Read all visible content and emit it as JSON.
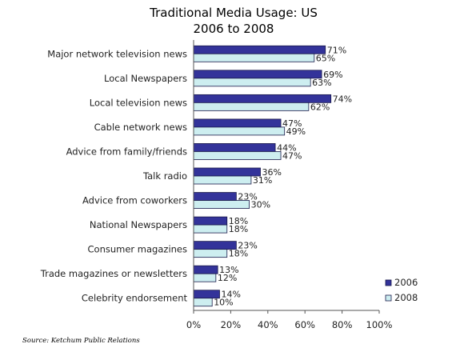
{
  "chart_data": {
    "type": "bar",
    "orientation": "horizontal",
    "title_lines": [
      "Traditional Media Usage: US",
      "2006 to 2008"
    ],
    "categories": [
      "Major network television news",
      "Local Newspapers",
      "Local television news",
      "Cable network news",
      "Advice from family/friends",
      "Talk radio",
      "Advice from coworkers",
      "National Newspapers",
      "Consumer magazines",
      "Trade magazines or newsletters",
      "Celebrity endorsement"
    ],
    "series": [
      {
        "name": "2006",
        "color": "#33339a",
        "values": [
          71,
          69,
          74,
          47,
          44,
          36,
          23,
          18,
          23,
          13,
          14
        ]
      },
      {
        "name": "2008",
        "color": "#cdeef0",
        "values": [
          65,
          63,
          62,
          49,
          47,
          31,
          30,
          18,
          18,
          12,
          10
        ]
      }
    ],
    "value_suffix": "%",
    "xlim": [
      0,
      100
    ],
    "xticks": [
      "0%",
      "20%",
      "40%",
      "60%",
      "80%",
      "100%"
    ],
    "grid": false,
    "legend_position": "bottom-right",
    "source": "Source: Ketchum Public Relations"
  }
}
